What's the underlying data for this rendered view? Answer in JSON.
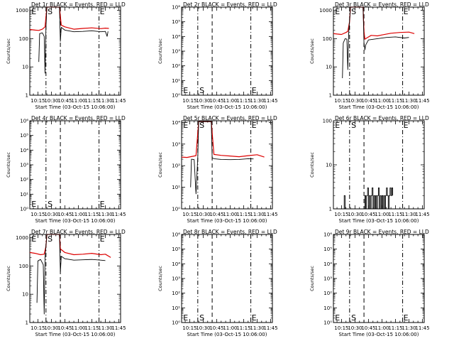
{
  "xlabel": "Start Time (03-Oct-15 10:06:00)",
  "ylabel": "Counts/sec",
  "xticks": [
    "10:15",
    "10:30",
    "10:45",
    "11:00",
    "11:15",
    "11:30",
    "11:45"
  ],
  "colors": {
    "events": "#000000",
    "lld": "#dd0000",
    "frame": "#000000",
    "background": "#ffffff"
  },
  "chart_data": [
    {
      "type": "line",
      "log_y": true,
      "title": "Det 1r BLACK = Events, RED = LLD",
      "yticks": [
        "1",
        "10",
        "100",
        "1000"
      ],
      "ylim": [
        1,
        1300
      ],
      "xlim": [
        "10:06",
        "11:47"
      ],
      "markers": [
        {
          "label": "E",
          "x": "10:07"
        },
        {
          "label": "S",
          "x": "10:25"
        },
        {
          "label": "E",
          "x": "11:23"
        }
      ],
      "dashed_x": [
        "10:24",
        "10:40",
        "11:23"
      ],
      "series": [
        {
          "points": [
            [
              "10:06",
              210
            ],
            [
              "10:12",
              200
            ],
            [
              "10:16",
              195
            ],
            [
              "10:20",
              215
            ],
            [
              "10:23",
              260
            ],
            [
              "10:25",
              1300
            ],
            [
              "10:39",
              1300
            ],
            [
              "10:41",
              300
            ],
            [
              "10:45",
              260
            ],
            [
              "10:55",
              215
            ],
            [
              "11:05",
              230
            ],
            [
              "11:15",
              240
            ],
            [
              "11:25",
              225
            ],
            [
              "11:30",
              235
            ],
            [
              "11:34",
              230
            ]
          ]
        },
        {
          "points": [
            [
              "10:16",
              15
            ],
            [
              "10:17",
              150
            ],
            [
              "10:20",
              160
            ],
            [
              "10:22",
              120
            ],
            [
              "10:23",
              6
            ],
            [
              "10:24",
              250
            ],
            [
              "10:25",
              1300
            ],
            [
              "10:39",
              1300
            ],
            [
              "10:40",
              80
            ],
            [
              "10:41",
              250
            ],
            [
              "10:45",
              200
            ],
            [
              "10:55",
              175
            ],
            [
              "11:05",
              180
            ],
            [
              "11:15",
              190
            ],
            [
              "11:25",
              175
            ],
            [
              "11:30",
              180
            ],
            [
              "11:32",
              120
            ],
            [
              "11:33",
              180
            ]
          ]
        }
      ]
    },
    {
      "type": "line",
      "log_y": true,
      "title": "Det 2r BLACK = Events, RED = LLD",
      "yticks": [
        "10⁰",
        "10¹",
        "10²",
        "10³",
        "10⁴",
        "10⁵",
        "10⁶"
      ],
      "ylim": [
        1,
        1000000
      ],
      "xlim": [
        "10:06",
        "11:47"
      ],
      "markers": [
        {
          "label": "E",
          "x": "10:07"
        },
        {
          "label": "S",
          "x": "10:25"
        },
        {
          "label": "E",
          "x": "11:23"
        }
      ],
      "dashed_x": [
        "10:24",
        "10:40",
        "11:23"
      ],
      "series": []
    },
    {
      "type": "line",
      "log_y": true,
      "title": "Det 3r BLACK = Events, RED = LLD",
      "yticks": [
        "1",
        "10",
        "100",
        "1000"
      ],
      "ylim": [
        1,
        1300
      ],
      "xlim": [
        "10:06",
        "11:47"
      ],
      "markers": [
        {
          "label": "E",
          "x": "10:07"
        },
        {
          "label": "S",
          "x": "10:25"
        },
        {
          "label": "E",
          "x": "11:23"
        }
      ],
      "dashed_x": [
        "10:24",
        "10:40",
        "11:23"
      ],
      "series": [
        {
          "points": [
            [
              "10:06",
              150
            ],
            [
              "10:10",
              145
            ],
            [
              "10:15",
              140
            ],
            [
              "10:20",
              165
            ],
            [
              "10:22",
              180
            ],
            [
              "10:24",
              400
            ],
            [
              "10:25",
              1300
            ],
            [
              "10:39",
              1300
            ],
            [
              "10:40",
              180
            ],
            [
              "10:41",
              95
            ],
            [
              "10:43",
              105
            ],
            [
              "10:48",
              130
            ],
            [
              "10:55",
              125
            ],
            [
              "11:00",
              135
            ],
            [
              "11:10",
              155
            ],
            [
              "11:20",
              165
            ],
            [
              "11:30",
              170
            ],
            [
              "11:36",
              150
            ]
          ]
        },
        {
          "points": [
            [
              "10:16",
              4
            ],
            [
              "10:17",
              70
            ],
            [
              "10:19",
              100
            ],
            [
              "10:21",
              95
            ],
            [
              "10:22",
              8
            ],
            [
              "10:23",
              150
            ],
            [
              "10:25",
              1300
            ],
            [
              "10:39",
              1300
            ],
            [
              "10:40",
              70
            ],
            [
              "10:41",
              40
            ],
            [
              "10:42",
              60
            ],
            [
              "10:45",
              90
            ],
            [
              "10:55",
              100
            ],
            [
              "11:05",
              110
            ],
            [
              "11:15",
              115
            ],
            [
              "11:25",
              105
            ],
            [
              "11:30",
              110
            ]
          ]
        }
      ]
    },
    {
      "type": "line",
      "log_y": true,
      "title": "Det 4r BLACK = Events, RED = LLD",
      "yticks": [
        "10⁰",
        "10¹",
        "10²",
        "10³",
        "10⁴",
        "10⁵",
        "10⁶"
      ],
      "ylim": [
        1,
        1000000
      ],
      "xlim": [
        "10:06",
        "11:47"
      ],
      "markers": [
        {
          "label": "E",
          "x": "10:07"
        },
        {
          "label": "S",
          "x": "10:25"
        },
        {
          "label": "E",
          "x": "11:23"
        }
      ],
      "dashed_x": [
        "10:24",
        "10:40",
        "11:23"
      ],
      "series": []
    },
    {
      "type": "line",
      "log_y": true,
      "title": "Det 5r BLACK = Events, RED = LLD",
      "yticks": [
        "10⁰",
        "10¹",
        "10²",
        "10³",
        "10⁴"
      ],
      "ylim": [
        1,
        12000
      ],
      "xlim": [
        "10:06",
        "11:47"
      ],
      "markers": [
        {
          "label": "E",
          "x": "10:07"
        },
        {
          "label": "S",
          "x": "10:25"
        },
        {
          "label": "E",
          "x": "11:23"
        }
      ],
      "dashed_x": [
        "10:24",
        "10:40",
        "11:23"
      ],
      "series": [
        {
          "points": [
            [
              "10:06",
              250
            ],
            [
              "10:12",
              240
            ],
            [
              "10:18",
              270
            ],
            [
              "10:22",
              290
            ],
            [
              "10:25",
              11000
            ],
            [
              "10:39",
              11000
            ],
            [
              "10:42",
              330
            ],
            [
              "10:50",
              300
            ],
            [
              "11:00",
              280
            ],
            [
              "11:10",
              260
            ],
            [
              "11:20",
              290
            ],
            [
              "11:30",
              320
            ],
            [
              "11:38",
              250
            ]
          ]
        },
        {
          "points": [
            [
              "10:16",
              10
            ],
            [
              "10:17",
              200
            ],
            [
              "10:20",
              190
            ],
            [
              "10:22",
              5
            ],
            [
              "10:24",
              230
            ],
            [
              "10:25",
              11000
            ],
            [
              "10:39",
              11000
            ],
            [
              "10:40",
              230
            ],
            [
              "10:42",
              210
            ],
            [
              "10:50",
              195
            ],
            [
              "11:00",
              190
            ],
            [
              "11:10",
              195
            ],
            [
              "11:20",
              210
            ],
            [
              "11:26",
              205
            ]
          ]
        }
      ]
    },
    {
      "type": "line",
      "log_y": true,
      "title": "Det 6r BLACK = Events, RED = LLD",
      "yticks": [
        "1",
        "10",
        "100"
      ],
      "ylim": [
        1,
        100
      ],
      "xlim": [
        "10:06",
        "11:47"
      ],
      "markers": [
        {
          "label": "E",
          "x": "10:07"
        },
        {
          "label": "S",
          "x": "10:25"
        },
        {
          "label": "E",
          "x": "11:23"
        }
      ],
      "dashed_x": [
        "10:24",
        "10:40",
        "11:23"
      ],
      "series": [
        {
          "points": []
        },
        {
          "points": [
            [
              "10:17",
              1
            ],
            [
              "10:18",
              2
            ],
            [
              "10:19",
              1
            ],
            [
              "10:40",
              1
            ],
            [
              "10:41",
              2
            ],
            [
              "10:42",
              1
            ],
            [
              "10:43",
              2
            ],
            [
              "10:44",
              3
            ],
            [
              "10:45",
              1
            ],
            [
              "10:46",
              2
            ],
            [
              "10:47",
              1
            ],
            [
              "10:48",
              2
            ],
            [
              "10:49",
              3
            ],
            [
              "10:50",
              1
            ],
            [
              "10:51",
              2
            ],
            [
              "10:52",
              1
            ],
            [
              "10:53",
              2
            ],
            [
              "10:54",
              1
            ],
            [
              "10:55",
              2
            ],
            [
              "10:56",
              3
            ],
            [
              "10:57",
              1
            ],
            [
              "10:58",
              2
            ],
            [
              "10:59",
              1
            ],
            [
              "11:00",
              2
            ],
            [
              "11:01",
              1
            ],
            [
              "11:02",
              2
            ],
            [
              "11:03",
              1
            ],
            [
              "11:04",
              2
            ],
            [
              "11:05",
              3
            ],
            [
              "11:06",
              2
            ],
            [
              "11:07",
              1
            ],
            [
              "11:08",
              2
            ],
            [
              "11:09",
              3
            ],
            [
              "11:10",
              2
            ],
            [
              "11:11",
              3
            ],
            [
              "11:12",
              2
            ]
          ]
        }
      ]
    },
    {
      "type": "line",
      "log_y": true,
      "title": "Det 7r BLACK = Events, RED = LLD",
      "yticks": [
        "1",
        "10",
        "100",
        "1000"
      ],
      "ylim": [
        1,
        1300
      ],
      "xlim": [
        "10:06",
        "11:47"
      ],
      "markers": [
        {
          "label": "E",
          "x": "10:07"
        },
        {
          "label": "S",
          "x": "10:25"
        },
        {
          "label": "E",
          "x": "11:23"
        }
      ],
      "dashed_x": [
        "10:24",
        "10:40",
        "11:23"
      ],
      "series": [
        {
          "points": [
            [
              "10:06",
              300
            ],
            [
              "10:12",
              280
            ],
            [
              "10:18",
              250
            ],
            [
              "10:22",
              260
            ],
            [
              "10:24",
              500
            ],
            [
              "10:25",
              1300
            ],
            [
              "10:39",
              1300
            ],
            [
              "10:40",
              400
            ],
            [
              "10:45",
              300
            ],
            [
              "10:55",
              250
            ],
            [
              "11:05",
              260
            ],
            [
              "11:15",
              280
            ],
            [
              "11:25",
              250
            ],
            [
              "11:30",
              260
            ],
            [
              "11:36",
              200
            ]
          ]
        },
        {
          "points": [
            [
              "10:14",
              5
            ],
            [
              "10:15",
              150
            ],
            [
              "10:18",
              170
            ],
            [
              "10:21",
              110
            ],
            [
              "10:22",
              2
            ],
            [
              "10:23",
              200
            ],
            [
              "10:25",
              1300
            ],
            [
              "10:39",
              1300
            ],
            [
              "10:40",
              60
            ],
            [
              "10:41",
              220
            ],
            [
              "10:45",
              180
            ],
            [
              "10:55",
              160
            ],
            [
              "11:05",
              165
            ],
            [
              "11:15",
              170
            ],
            [
              "11:25",
              160
            ],
            [
              "11:30",
              155
            ]
          ]
        }
      ]
    },
    {
      "type": "line",
      "log_y": true,
      "title": "Det 8r BLACK = Events, RED = LLD",
      "yticks": [
        "10⁰",
        "10¹",
        "10²",
        "10³",
        "10⁴",
        "10⁵",
        "10⁶"
      ],
      "ylim": [
        1,
        1000000
      ],
      "xlim": [
        "10:06",
        "11:47"
      ],
      "markers": [
        {
          "label": "E",
          "x": "10:07"
        },
        {
          "label": "S",
          "x": "10:25"
        },
        {
          "label": "E",
          "x": "11:23"
        }
      ],
      "dashed_x": [
        "10:24",
        "10:40",
        "11:23"
      ],
      "series": []
    },
    {
      "type": "line",
      "log_y": true,
      "title": "Det 9r BLACK = Events, RED = LLD",
      "yticks": [
        "10⁰",
        "10¹",
        "10²",
        "10³",
        "10⁴",
        "10⁵",
        "10⁶"
      ],
      "ylim": [
        1,
        1000000
      ],
      "xlim": [
        "10:06",
        "11:47"
      ],
      "markers": [
        {
          "label": "E",
          "x": "10:07"
        },
        {
          "label": "S",
          "x": "10:25"
        },
        {
          "label": "E",
          "x": "11:23"
        }
      ],
      "dashed_x": [
        "10:24",
        "10:40",
        "11:23"
      ],
      "series": []
    }
  ]
}
